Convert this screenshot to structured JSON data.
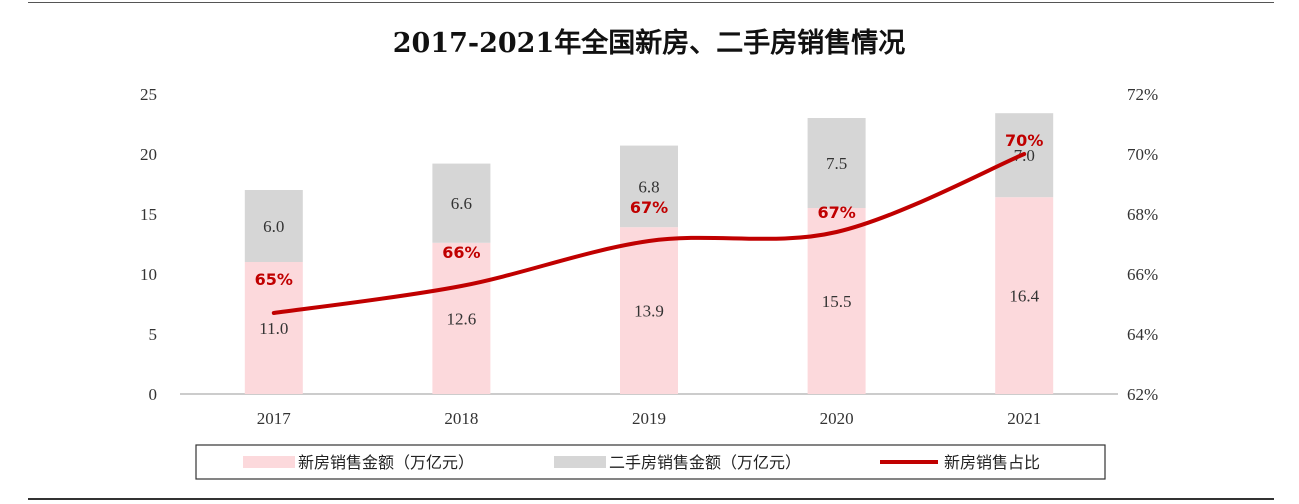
{
  "chart_data": {
    "type": "bar",
    "stacked": true,
    "title": "2017-2021年全国新房、二手房销售情况",
    "categories": [
      "2017",
      "2018",
      "2019",
      "2020",
      "2021"
    ],
    "series": [
      {
        "name": "新房销售金额（万亿元）",
        "type": "bar",
        "axis": "left",
        "color": "#fcd9dc",
        "values": [
          11.0,
          12.6,
          13.9,
          15.5,
          16.4
        ],
        "labels": [
          "11.0",
          "12.6",
          "13.9",
          "15.5",
          "16.4"
        ]
      },
      {
        "name": "二手房销售金额（万亿元）",
        "type": "bar",
        "axis": "left",
        "color": "#d6d6d6",
        "values": [
          6.0,
          6.6,
          6.8,
          7.5,
          7.0
        ],
        "labels": [
          "6.0",
          "6.6",
          "6.8",
          "7.5",
          "7.0"
        ]
      },
      {
        "name": "新房销售占比",
        "type": "line",
        "axis": "right",
        "color": "#c00000",
        "values": [
          0.647,
          0.656,
          0.671,
          0.674,
          0.7
        ],
        "labels": [
          "65%",
          "66%",
          "67%",
          "67%",
          "70%"
        ]
      }
    ],
    "ylim": [
      0,
      25
    ],
    "y_ticks": [
      "0",
      "5",
      "10",
      "15",
      "20",
      "25"
    ],
    "y2lim": [
      0.62,
      0.72
    ],
    "y2_ticks": [
      "62%",
      "64%",
      "66%",
      "68%",
      "70%",
      "72%"
    ],
    "grid": false,
    "legend_position": "bottom"
  }
}
